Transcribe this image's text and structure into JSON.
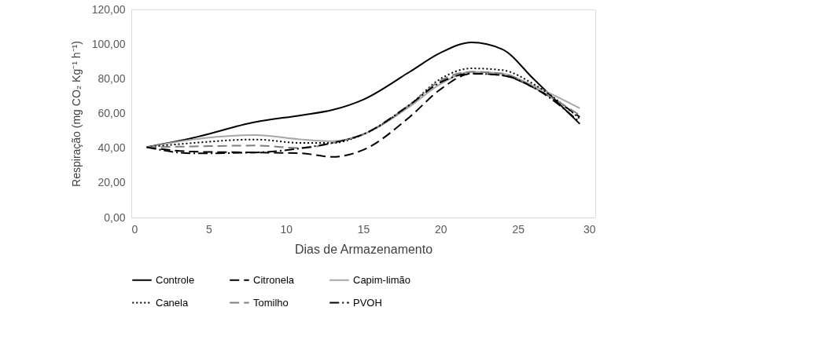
{
  "chart_data": {
    "type": "line",
    "xlabel": "Dias de Armazenamento",
    "ylabel": "Respiração (mg CO₂ Kg⁻¹ h⁻¹)",
    "x": [
      1,
      4,
      8,
      11,
      13,
      15,
      18,
      20,
      22,
      24,
      26,
      29
    ],
    "xlim": [
      0,
      30
    ],
    "xticks": [
      0,
      5,
      10,
      15,
      20,
      25,
      30
    ],
    "ylim": [
      0,
      120
    ],
    "yticks": [
      {
        "value": 0,
        "label": "0,00"
      },
      {
        "value": 20,
        "label": "20,00"
      },
      {
        "value": 40,
        "label": "40,00"
      },
      {
        "value": 60,
        "label": "60,00"
      },
      {
        "value": 80,
        "label": "80,00"
      },
      {
        "value": 100,
        "label": "100,00"
      },
      {
        "value": 120,
        "label": "120,00"
      }
    ],
    "grid": false,
    "legend": "bottom",
    "marker": "none",
    "series": [
      {
        "name": "Controle",
        "color": "#000000",
        "line_style": "solid",
        "values": [
          40.6,
          46,
          55,
          59,
          62,
          68,
          84,
          95,
          101,
          97,
          80,
          54
        ]
      },
      {
        "name": "Citronela",
        "color": "#000000",
        "line_style": "dashed",
        "values": [
          40.5,
          38,
          37.5,
          37,
          35,
          39,
          58,
          74,
          83,
          82,
          75,
          58
        ]
      },
      {
        "name": "Capim-limão",
        "color": "#a6a6a6",
        "line_style": "solid",
        "values": [
          40.5,
          45,
          47.5,
          45,
          44,
          48,
          64,
          77,
          84,
          83,
          76,
          63
        ]
      },
      {
        "name": "Canela",
        "color": "#000000",
        "line_style": "dotted",
        "values": [
          40.5,
          43,
          45,
          43,
          43,
          48,
          65,
          80,
          86,
          85,
          77,
          57
        ]
      },
      {
        "name": "Tomilho",
        "color": "#7f7f7f",
        "line_style": "dashed",
        "values": [
          40.5,
          41,
          41.5,
          40,
          43,
          48,
          65,
          79,
          84,
          83,
          75,
          59
        ]
      },
      {
        "name": "PVOH",
        "color": "#000000",
        "line_style": "dashdot",
        "values": [
          40.5,
          37,
          37.5,
          40,
          43,
          48,
          65,
          78,
          83,
          82,
          75,
          55
        ]
      }
    ]
  }
}
